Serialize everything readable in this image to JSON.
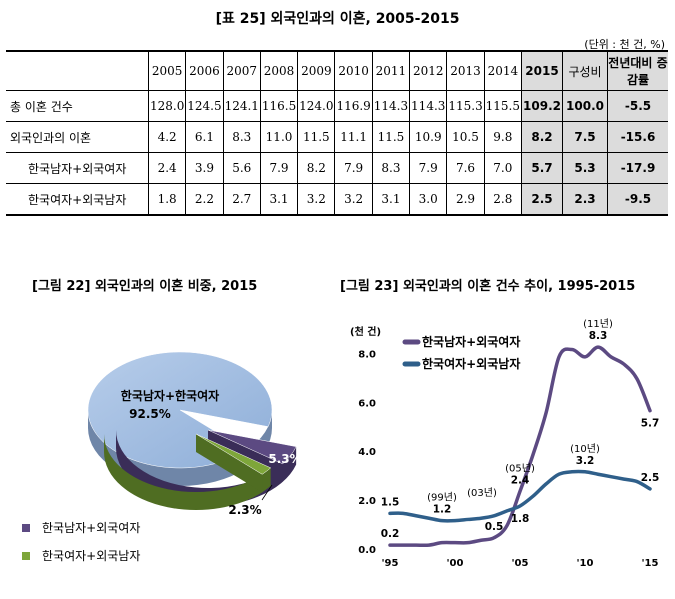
{
  "table": {
    "title": "[표 25] 외국인과의 이혼, 2005-2015",
    "unit": "(단위 : 천 건, %)",
    "years": [
      "2005",
      "2006",
      "2007",
      "2008",
      "2009",
      "2010",
      "2011",
      "2012",
      "2013",
      "2014"
    ],
    "col_2015": "2015",
    "col_share": "구성비",
    "col_change": "전년대비 증감률",
    "rows": [
      {
        "label": "총 이혼 건수",
        "values": [
          "128.0",
          "124.5",
          "124.1",
          "116.5",
          "124.0",
          "116.9",
          "114.3",
          "114.3",
          "115.3",
          "115.5"
        ],
        "v2015": "109.2",
        "share": "100.0",
        "change": "-5.5"
      },
      {
        "label": "외국인과의 이혼",
        "values": [
          "4.2",
          "6.1",
          "8.3",
          "11.0",
          "11.5",
          "11.1",
          "11.5",
          "10.9",
          "10.5",
          "9.8"
        ],
        "v2015": "8.2",
        "share": "7.5",
        "change": "-15.6"
      },
      {
        "label": "한국남자+외국여자",
        "values": [
          "2.4",
          "3.9",
          "5.6",
          "7.9",
          "8.2",
          "7.9",
          "8.3",
          "7.9",
          "7.6",
          "7.0"
        ],
        "v2015": "5.7",
        "share": "5.3",
        "change": "-17.9"
      },
      {
        "label": "한국여자+외국남자",
        "values": [
          "1.8",
          "2.2",
          "2.7",
          "3.1",
          "3.2",
          "3.2",
          "3.1",
          "3.0",
          "2.9",
          "2.8"
        ],
        "v2015": "2.5",
        "share": "2.3",
        "change": "-9.5"
      }
    ]
  },
  "pie_title": "[그림 22] 외국인과의 이혼 비중, 2015",
  "line_title": "[그림 23] 외국인과의 이혼 건수 추이, 1995-2015",
  "chart_data": [
    {
      "type": "pie",
      "title": "[그림 22] 외국인과의 이혼 비중, 2015",
      "labels": [
        "한국남자+한국여자",
        "한국남자+외국여자",
        "한국여자+외국남자"
      ],
      "values": [
        92.5,
        5.3,
        2.3
      ],
      "value_labels": [
        "92.5%",
        "5.3%",
        "2.3%"
      ],
      "center_label": "한국남자+한국여자",
      "colors": [
        "#9cb9df",
        "#5c4a82",
        "#7ea63a"
      ],
      "legend": [
        "한국남자+외국여자",
        "한국여자+외국남자"
      ],
      "legend_position": "bottom-left"
    },
    {
      "type": "line",
      "title": "[그림 23] 외국인과의 이혼 건수 추이, 1995-2015",
      "ylabel": "(천 건)",
      "ylim": [
        0,
        9
      ],
      "yticks": [
        "0.0",
        "2.0",
        "4.0",
        "6.0",
        "8.0"
      ],
      "ytick_values": [
        0,
        2,
        4,
        6,
        8
      ],
      "xticks": [
        "'95",
        "'00",
        "'05",
        "'10",
        "'15"
      ],
      "xtick_values": [
        1995,
        2000,
        2005,
        2010,
        2015
      ],
      "x": [
        1995,
        1996,
        1997,
        1998,
        1999,
        2000,
        2001,
        2002,
        2003,
        2004,
        2005,
        2006,
        2007,
        2008,
        2009,
        2010,
        2011,
        2012,
        2013,
        2014,
        2015
      ],
      "series": [
        {
          "name": "한국남자+외국여자",
          "color": "#5c4a82",
          "values": [
            0.2,
            0.2,
            0.2,
            0.2,
            0.3,
            0.3,
            0.3,
            0.4,
            0.5,
            1.0,
            2.4,
            3.9,
            5.6,
            7.9,
            8.2,
            7.9,
            8.3,
            7.9,
            7.6,
            7.0,
            5.7
          ]
        },
        {
          "name": "한국여자+외국남자",
          "color": "#2f5f8a",
          "values": [
            1.5,
            1.5,
            1.4,
            1.3,
            1.2,
            1.2,
            1.25,
            1.3,
            1.4,
            1.6,
            1.8,
            2.2,
            2.7,
            3.1,
            3.2,
            3.2,
            3.1,
            3.0,
            2.9,
            2.8,
            2.5
          ]
        }
      ],
      "annotations": [
        {
          "text": "1.5",
          "x": 1995,
          "y": 1.5,
          "pos": "above"
        },
        {
          "text": "0.2",
          "x": 1995,
          "y": 0.2,
          "pos": "above"
        },
        {
          "text": "(99년)",
          "x": 1999,
          "y": 1.2,
          "pos": "above2"
        },
        {
          "text": "1.2",
          "x": 1999,
          "y": 1.2,
          "pos": "above"
        },
        {
          "text": "(03년)",
          "x": 2003,
          "y": 1.4,
          "pos": "above-left"
        },
        {
          "text": "0.5",
          "x": 2003,
          "y": 0.5,
          "pos": "above"
        },
        {
          "text": "(05년)",
          "x": 2005,
          "y": 2.4,
          "pos": "above2"
        },
        {
          "text": "2.4",
          "x": 2005,
          "y": 2.4,
          "pos": "above"
        },
        {
          "text": "1.8",
          "x": 2005,
          "y": 1.8,
          "pos": "below"
        },
        {
          "text": "(11년)",
          "x": 2011,
          "y": 8.3,
          "pos": "above2"
        },
        {
          "text": "8.3",
          "x": 2011,
          "y": 8.3,
          "pos": "above"
        },
        {
          "text": "(10년)",
          "x": 2010,
          "y": 3.2,
          "pos": "above2"
        },
        {
          "text": "3.2",
          "x": 2010,
          "y": 3.2,
          "pos": "above"
        },
        {
          "text": "5.7",
          "x": 2015,
          "y": 5.7,
          "pos": "below"
        },
        {
          "text": "2.5",
          "x": 2015,
          "y": 2.5,
          "pos": "above"
        }
      ],
      "legend_position": "top-left"
    }
  ]
}
